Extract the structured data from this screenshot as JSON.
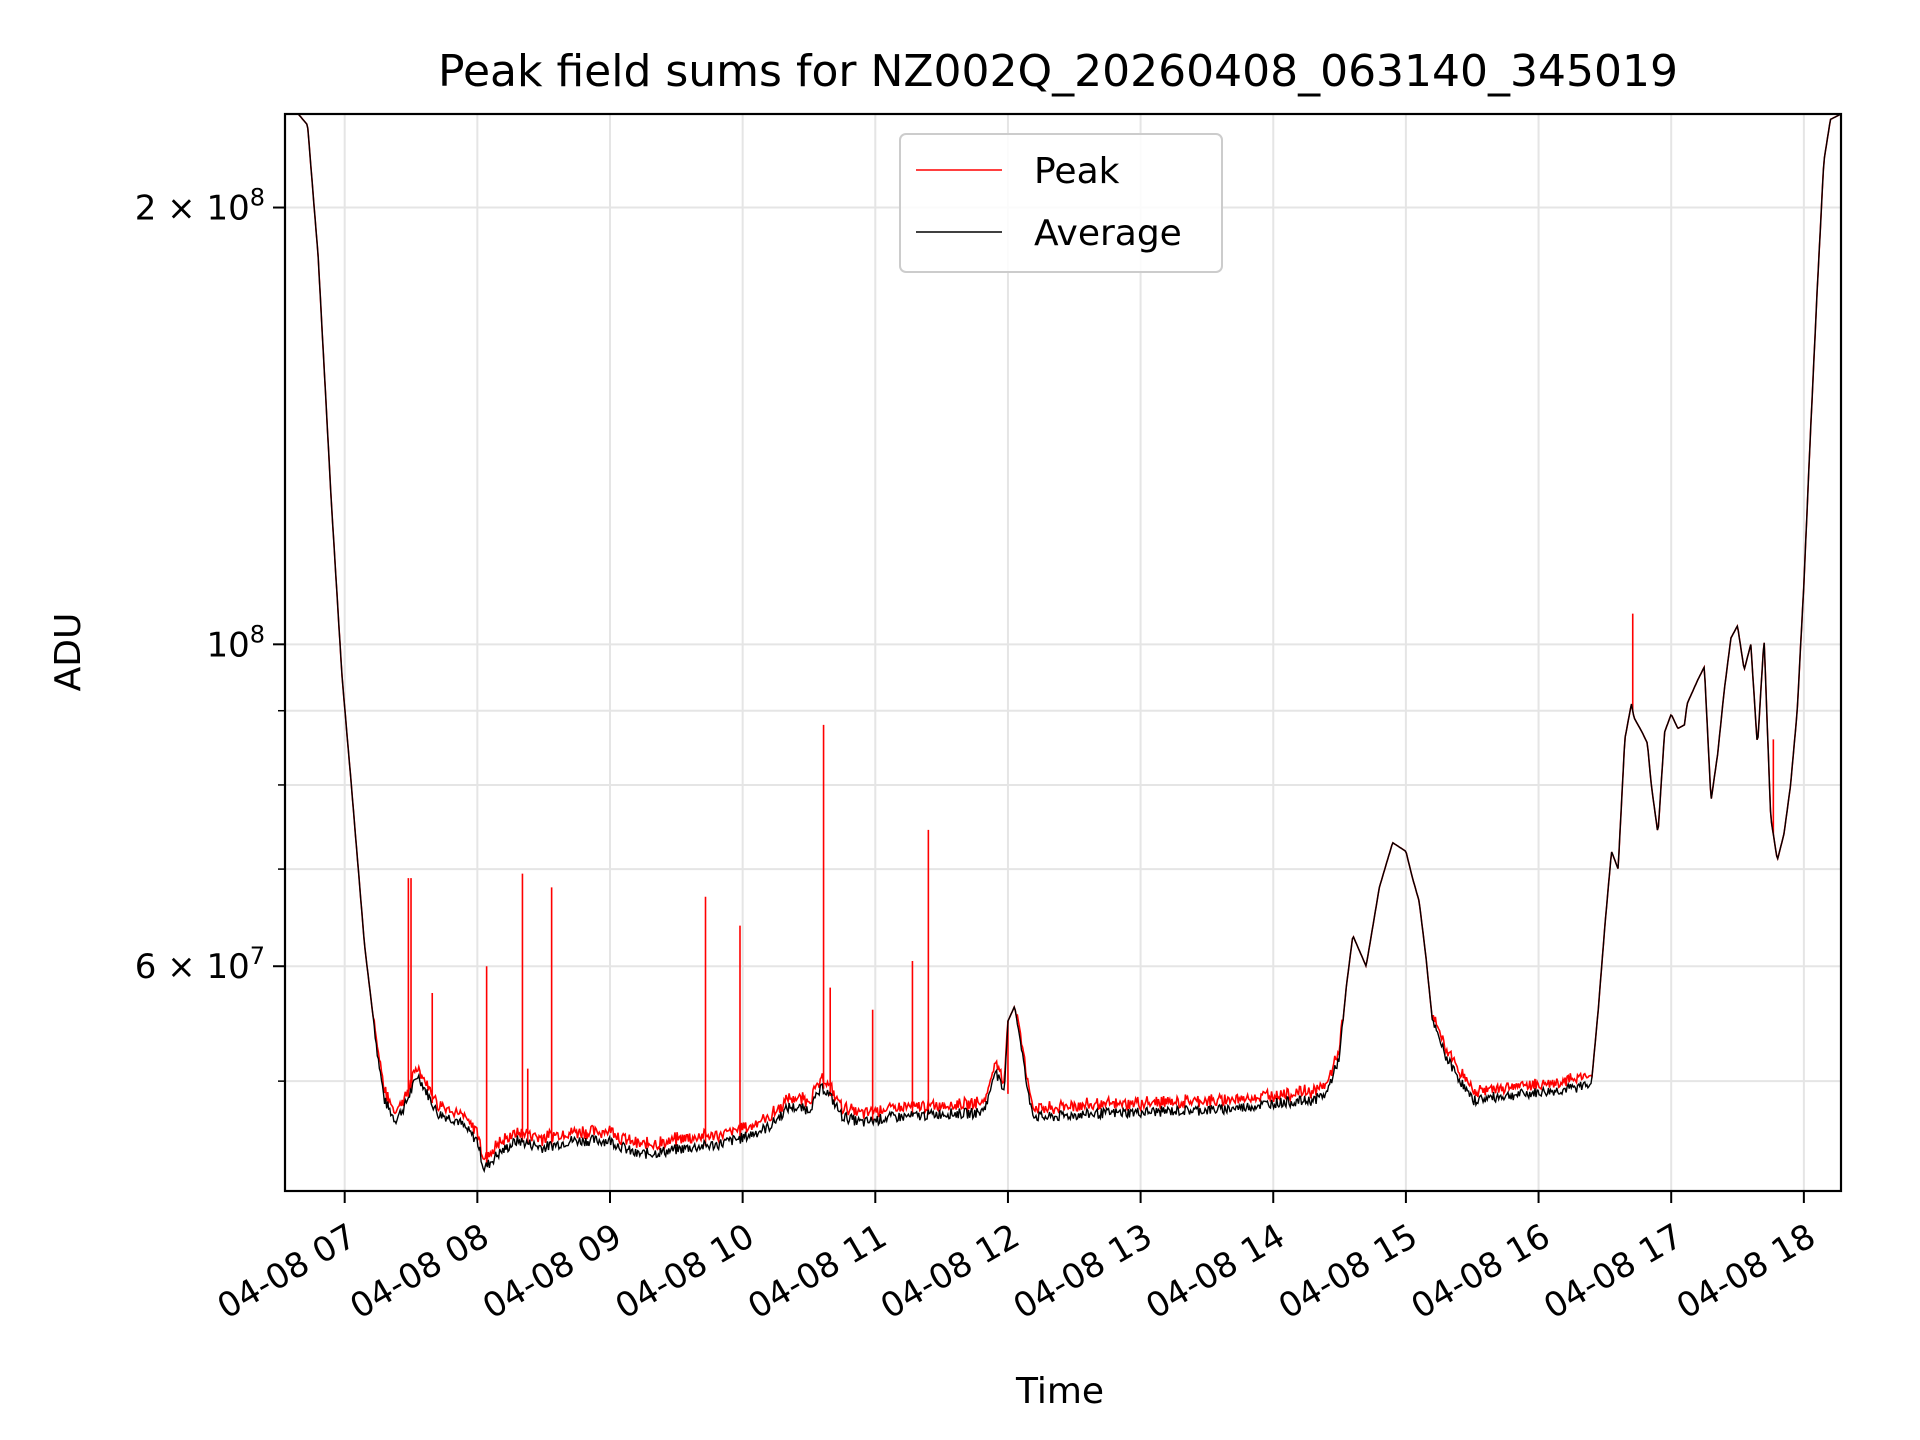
{
  "chart_data": {
    "type": "line",
    "title": "Peak field sums for NZ002Q_20260408_063140_345019",
    "xlabel": "Time",
    "ylabel": "ADU",
    "y_scale": "log",
    "ylim": [
      42000000,
      232000000
    ],
    "xlim_hours": [
      6.55,
      18.28
    ],
    "grid": true,
    "legend_position": "upper center",
    "x_ticks": [
      {
        "hour": 7,
        "label": "04-08 07"
      },
      {
        "hour": 8,
        "label": "04-08 08"
      },
      {
        "hour": 9,
        "label": "04-08 09"
      },
      {
        "hour": 10,
        "label": "04-08 10"
      },
      {
        "hour": 11,
        "label": "04-08 11"
      },
      {
        "hour": 12,
        "label": "04-08 12"
      },
      {
        "hour": 13,
        "label": "04-08 13"
      },
      {
        "hour": 14,
        "label": "04-08 14"
      },
      {
        "hour": 15,
        "label": "04-08 15"
      },
      {
        "hour": 16,
        "label": "04-08 16"
      },
      {
        "hour": 17,
        "label": "04-08 17"
      },
      {
        "hour": 18,
        "label": "04-08 18"
      }
    ],
    "y_major_ticks": [
      {
        "value": 200000000,
        "mantissa": "2",
        "base": "10",
        "exp": "8"
      },
      {
        "value": 100000000,
        "mantissa": "",
        "base": "10",
        "exp": "8"
      },
      {
        "value": 60000000,
        "mantissa": "6",
        "base": "10",
        "exp": "7"
      }
    ],
    "y_minor_gridlines": [
      50000000,
      70000000,
      80000000,
      90000000
    ],
    "series": [
      {
        "name": "Average",
        "color": "#000000",
        "x": [
          6.55,
          6.65,
          6.72,
          6.8,
          6.9,
          6.98,
          7.05,
          7.15,
          7.25,
          7.3,
          7.38,
          7.45,
          7.55,
          7.7,
          7.85,
          8.0,
          8.05,
          8.15,
          8.3,
          8.5,
          8.7,
          8.9,
          9.0,
          9.2,
          9.4,
          9.6,
          9.8,
          10.0,
          10.2,
          10.35,
          10.5,
          10.6,
          10.65,
          10.75,
          10.9,
          11.1,
          11.3,
          11.5,
          11.7,
          11.8,
          11.85,
          11.9,
          11.97,
          12.0,
          12.05,
          12.1,
          12.15,
          12.2,
          12.3,
          12.5,
          12.7,
          13.0,
          13.3,
          13.6,
          13.8,
          14.0,
          14.3,
          14.4,
          14.5,
          14.55,
          14.6,
          14.7,
          14.8,
          14.9,
          15.0,
          15.05,
          15.1,
          15.15,
          15.2,
          15.3,
          15.5,
          15.7,
          15.9,
          16.1,
          16.3,
          16.4,
          16.45,
          16.5,
          16.55,
          16.6,
          16.65,
          16.7,
          16.72,
          16.78,
          16.82,
          16.85,
          16.9,
          16.95,
          17.0,
          17.05,
          17.1,
          17.12,
          17.2,
          17.25,
          17.3,
          17.35,
          17.4,
          17.45,
          17.5,
          17.55,
          17.6,
          17.65,
          17.7,
          17.75,
          17.8,
          17.85,
          17.9,
          17.95,
          18.0,
          18.05,
          18.1,
          18.15,
          18.2,
          18.28
        ],
        "values": [
          232000000,
          232000000,
          228000000,
          185000000,
          125000000,
          95000000,
          80000000,
          62000000,
          52000000,
          48500000,
          47000000,
          48000000,
          50500000,
          47500000,
          47000000,
          45500000,
          43500000,
          44500000,
          45500000,
          45000000,
          45500000,
          45500000,
          45500000,
          44500000,
          44700000,
          45000000,
          45200000,
          45700000,
          46500000,
          48000000,
          47800000,
          49500000,
          49000000,
          47300000,
          46800000,
          47200000,
          47300000,
          47500000,
          47500000,
          47600000,
          48500000,
          51000000,
          49000000,
          55000000,
          56300000,
          53000000,
          49000000,
          47300000,
          47200000,
          47400000,
          47500000,
          47600000,
          47700000,
          47800000,
          48000000,
          48300000,
          48500000,
          49000000,
          52000000,
          58000000,
          63000000,
          60000000,
          68000000,
          73000000,
          72000000,
          69000000,
          66500000,
          61000000,
          55000000,
          52000000,
          48500000,
          48800000,
          49000000,
          49200000,
          49500000,
          50000000,
          56000000,
          64000000,
          72000000,
          70000000,
          86000000,
          91000000,
          89000000,
          87000000,
          85500000,
          80000000,
          74000000,
          87000000,
          89500000,
          87500000,
          88000000,
          91000000,
          94500000,
          96500000,
          78000000,
          84000000,
          93000000,
          101000000,
          103000000,
          96000000,
          100000000,
          85000000,
          101000000,
          76000000,
          71000000,
          74000000,
          80000000,
          90000000,
          110000000,
          140000000,
          175000000,
          215000000,
          230000000,
          232000000
        ],
        "noise": 400000
      },
      {
        "name": "Peak",
        "color": "#ff0000",
        "base": "Average",
        "offset": 800000,
        "spikes": [
          {
            "x": 7.48,
            "y": 69000000
          },
          {
            "x": 7.5,
            "y": 69000000
          },
          {
            "x": 7.66,
            "y": 57500000
          },
          {
            "x": 8.07,
            "y": 60000000
          },
          {
            "x": 8.34,
            "y": 69500000
          },
          {
            "x": 8.38,
            "y": 51000000
          },
          {
            "x": 8.56,
            "y": 68000000
          },
          {
            "x": 9.72,
            "y": 67000000
          },
          {
            "x": 9.98,
            "y": 64000000
          },
          {
            "x": 10.61,
            "y": 88000000
          },
          {
            "x": 10.66,
            "y": 58000000
          },
          {
            "x": 10.98,
            "y": 56000000
          },
          {
            "x": 11.28,
            "y": 60500000
          },
          {
            "x": 11.4,
            "y": 74500000
          },
          {
            "x": 12.0,
            "y": 49000000
          },
          {
            "x": 16.71,
            "y": 105000000
          },
          {
            "x": 17.77,
            "y": 86000000
          }
        ]
      }
    ]
  }
}
